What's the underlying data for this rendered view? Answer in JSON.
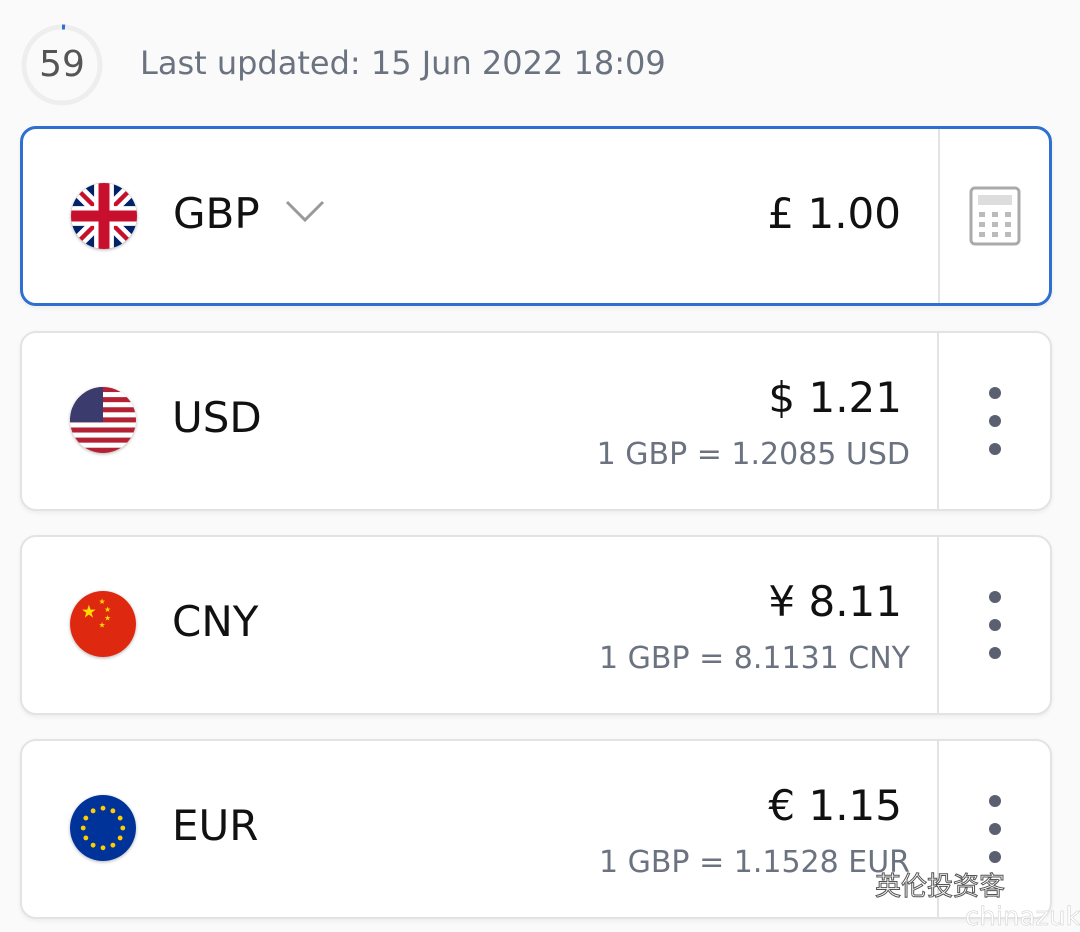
{
  "header": {
    "countdown": "59",
    "countdown_progress": 0.02,
    "last_updated": "Last updated: 15 Jun 2022 18:09"
  },
  "colors": {
    "accent": "#2f6fd0",
    "text_secondary": "#6b7280"
  },
  "base": {
    "code": "GBP",
    "amount": "£ 1.00",
    "flag": "uk-flag",
    "action_icon": "calculator-icon"
  },
  "rows": [
    {
      "code": "USD",
      "amount": "$ 1.21",
      "rate": "1 GBP = 1.2085 USD",
      "flag": "us-flag"
    },
    {
      "code": "CNY",
      "amount": "¥ 8.11",
      "rate": "1 GBP = 8.1131 CNY",
      "flag": "china-flag"
    },
    {
      "code": "EUR",
      "amount": "€ 1.15",
      "rate": "1 GBP = 1.1528 EUR",
      "flag": "eu-flag"
    }
  ],
  "watermark": {
    "text": "英伦投资客",
    "sub": "chinazuk"
  }
}
